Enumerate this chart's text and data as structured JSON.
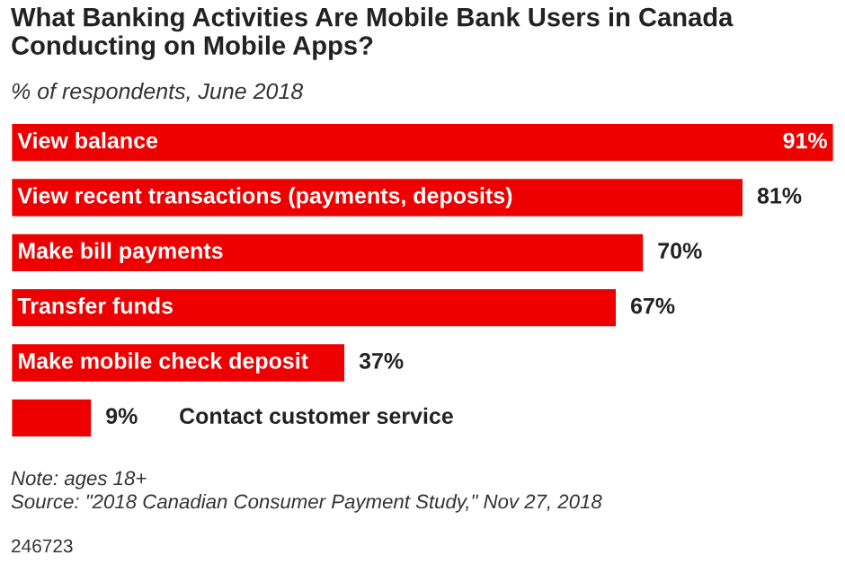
{
  "chart_data": {
    "type": "bar",
    "orientation": "horizontal",
    "title": "What Banking Activities Are Mobile Bank Users in Canada Conducting on Mobile Apps?",
    "subtitle": "% of respondents, June 2018",
    "categories": [
      "View balance",
      "View recent transactions (payments, deposits)",
      "Make bill payments",
      "Transfer funds",
      "Make mobile check deposit",
      "Contact customer service"
    ],
    "values": [
      91,
      81,
      70,
      67,
      37,
      9
    ],
    "color": "#ee0000",
    "value_labels": [
      "91%",
      "81%",
      "70%",
      "67%",
      "37%",
      "9%"
    ],
    "annotations": [
      "Note: ages 18+",
      "Source: \"2018 Canadian Consumer Payment Study,\" Nov 27, 2018",
      "246723"
    ]
  }
}
